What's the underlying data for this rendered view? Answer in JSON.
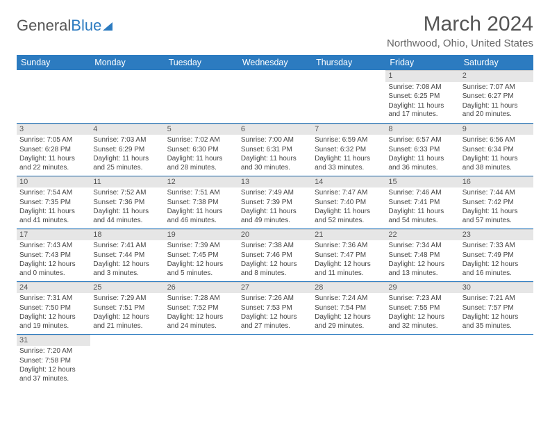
{
  "brand": {
    "part1": "General",
    "part2": "Blue"
  },
  "title": "March 2024",
  "location": "Northwood, Ohio, United States",
  "colors": {
    "accent": "#2c7bc0",
    "header_bg": "#2c7bc0",
    "daynum_bg": "#e6e6e6",
    "text": "#444444",
    "title_text": "#555555"
  },
  "weekdays": [
    "Sunday",
    "Monday",
    "Tuesday",
    "Wednesday",
    "Thursday",
    "Friday",
    "Saturday"
  ],
  "weeks": [
    [
      null,
      null,
      null,
      null,
      null,
      {
        "day": "1",
        "sunrise": "Sunrise: 7:08 AM",
        "sunset": "Sunset: 6:25 PM",
        "daylight": "Daylight: 11 hours and 17 minutes."
      },
      {
        "day": "2",
        "sunrise": "Sunrise: 7:07 AM",
        "sunset": "Sunset: 6:27 PM",
        "daylight": "Daylight: 11 hours and 20 minutes."
      }
    ],
    [
      {
        "day": "3",
        "sunrise": "Sunrise: 7:05 AM",
        "sunset": "Sunset: 6:28 PM",
        "daylight": "Daylight: 11 hours and 22 minutes."
      },
      {
        "day": "4",
        "sunrise": "Sunrise: 7:03 AM",
        "sunset": "Sunset: 6:29 PM",
        "daylight": "Daylight: 11 hours and 25 minutes."
      },
      {
        "day": "5",
        "sunrise": "Sunrise: 7:02 AM",
        "sunset": "Sunset: 6:30 PM",
        "daylight": "Daylight: 11 hours and 28 minutes."
      },
      {
        "day": "6",
        "sunrise": "Sunrise: 7:00 AM",
        "sunset": "Sunset: 6:31 PM",
        "daylight": "Daylight: 11 hours and 30 minutes."
      },
      {
        "day": "7",
        "sunrise": "Sunrise: 6:59 AM",
        "sunset": "Sunset: 6:32 PM",
        "daylight": "Daylight: 11 hours and 33 minutes."
      },
      {
        "day": "8",
        "sunrise": "Sunrise: 6:57 AM",
        "sunset": "Sunset: 6:33 PM",
        "daylight": "Daylight: 11 hours and 36 minutes."
      },
      {
        "day": "9",
        "sunrise": "Sunrise: 6:56 AM",
        "sunset": "Sunset: 6:34 PM",
        "daylight": "Daylight: 11 hours and 38 minutes."
      }
    ],
    [
      {
        "day": "10",
        "sunrise": "Sunrise: 7:54 AM",
        "sunset": "Sunset: 7:35 PM",
        "daylight": "Daylight: 11 hours and 41 minutes."
      },
      {
        "day": "11",
        "sunrise": "Sunrise: 7:52 AM",
        "sunset": "Sunset: 7:36 PM",
        "daylight": "Daylight: 11 hours and 44 minutes."
      },
      {
        "day": "12",
        "sunrise": "Sunrise: 7:51 AM",
        "sunset": "Sunset: 7:38 PM",
        "daylight": "Daylight: 11 hours and 46 minutes."
      },
      {
        "day": "13",
        "sunrise": "Sunrise: 7:49 AM",
        "sunset": "Sunset: 7:39 PM",
        "daylight": "Daylight: 11 hours and 49 minutes."
      },
      {
        "day": "14",
        "sunrise": "Sunrise: 7:47 AM",
        "sunset": "Sunset: 7:40 PM",
        "daylight": "Daylight: 11 hours and 52 minutes."
      },
      {
        "day": "15",
        "sunrise": "Sunrise: 7:46 AM",
        "sunset": "Sunset: 7:41 PM",
        "daylight": "Daylight: 11 hours and 54 minutes."
      },
      {
        "day": "16",
        "sunrise": "Sunrise: 7:44 AM",
        "sunset": "Sunset: 7:42 PM",
        "daylight": "Daylight: 11 hours and 57 minutes."
      }
    ],
    [
      {
        "day": "17",
        "sunrise": "Sunrise: 7:43 AM",
        "sunset": "Sunset: 7:43 PM",
        "daylight": "Daylight: 12 hours and 0 minutes."
      },
      {
        "day": "18",
        "sunrise": "Sunrise: 7:41 AM",
        "sunset": "Sunset: 7:44 PM",
        "daylight": "Daylight: 12 hours and 3 minutes."
      },
      {
        "day": "19",
        "sunrise": "Sunrise: 7:39 AM",
        "sunset": "Sunset: 7:45 PM",
        "daylight": "Daylight: 12 hours and 5 minutes."
      },
      {
        "day": "20",
        "sunrise": "Sunrise: 7:38 AM",
        "sunset": "Sunset: 7:46 PM",
        "daylight": "Daylight: 12 hours and 8 minutes."
      },
      {
        "day": "21",
        "sunrise": "Sunrise: 7:36 AM",
        "sunset": "Sunset: 7:47 PM",
        "daylight": "Daylight: 12 hours and 11 minutes."
      },
      {
        "day": "22",
        "sunrise": "Sunrise: 7:34 AM",
        "sunset": "Sunset: 7:48 PM",
        "daylight": "Daylight: 12 hours and 13 minutes."
      },
      {
        "day": "23",
        "sunrise": "Sunrise: 7:33 AM",
        "sunset": "Sunset: 7:49 PM",
        "daylight": "Daylight: 12 hours and 16 minutes."
      }
    ],
    [
      {
        "day": "24",
        "sunrise": "Sunrise: 7:31 AM",
        "sunset": "Sunset: 7:50 PM",
        "daylight": "Daylight: 12 hours and 19 minutes."
      },
      {
        "day": "25",
        "sunrise": "Sunrise: 7:29 AM",
        "sunset": "Sunset: 7:51 PM",
        "daylight": "Daylight: 12 hours and 21 minutes."
      },
      {
        "day": "26",
        "sunrise": "Sunrise: 7:28 AM",
        "sunset": "Sunset: 7:52 PM",
        "daylight": "Daylight: 12 hours and 24 minutes."
      },
      {
        "day": "27",
        "sunrise": "Sunrise: 7:26 AM",
        "sunset": "Sunset: 7:53 PM",
        "daylight": "Daylight: 12 hours and 27 minutes."
      },
      {
        "day": "28",
        "sunrise": "Sunrise: 7:24 AM",
        "sunset": "Sunset: 7:54 PM",
        "daylight": "Daylight: 12 hours and 29 minutes."
      },
      {
        "day": "29",
        "sunrise": "Sunrise: 7:23 AM",
        "sunset": "Sunset: 7:55 PM",
        "daylight": "Daylight: 12 hours and 32 minutes."
      },
      {
        "day": "30",
        "sunrise": "Sunrise: 7:21 AM",
        "sunset": "Sunset: 7:57 PM",
        "daylight": "Daylight: 12 hours and 35 minutes."
      }
    ],
    [
      {
        "day": "31",
        "sunrise": "Sunrise: 7:20 AM",
        "sunset": "Sunset: 7:58 PM",
        "daylight": "Daylight: 12 hours and 37 minutes."
      },
      null,
      null,
      null,
      null,
      null,
      null
    ]
  ]
}
